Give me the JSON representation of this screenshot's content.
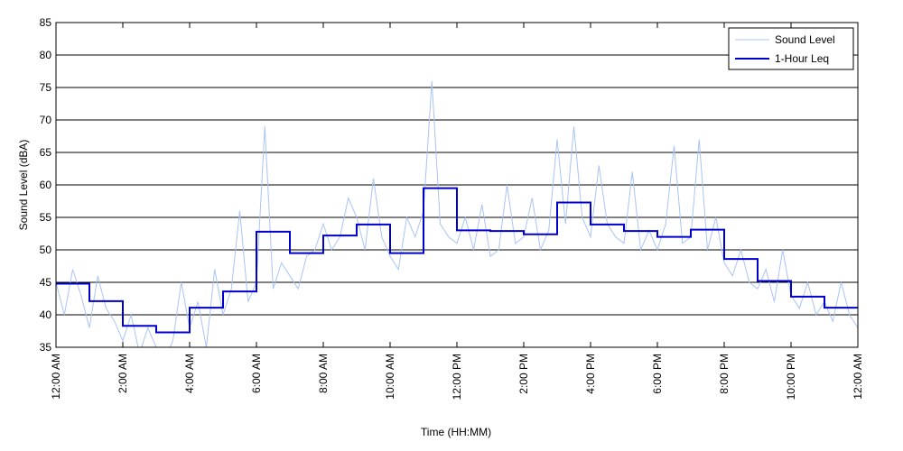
{
  "chart_data": {
    "type": "line",
    "xlabel": "Time (HH:MM)",
    "ylabel": "Sound Level (dBA)",
    "xlim": [
      0,
      24
    ],
    "ylim": [
      35,
      85
    ],
    "yticks": [
      35,
      40,
      45,
      50,
      55,
      60,
      65,
      70,
      75,
      80,
      85
    ],
    "xticks": [
      {
        "value": 0,
        "label": "12:00 AM"
      },
      {
        "value": 2,
        "label": "2:00 AM"
      },
      {
        "value": 4,
        "label": "4:00 AM"
      },
      {
        "value": 6,
        "label": "6:00 AM"
      },
      {
        "value": 8,
        "label": "8:00 AM"
      },
      {
        "value": 10,
        "label": "10:00 AM"
      },
      {
        "value": 12,
        "label": "12:00 PM"
      },
      {
        "value": 14,
        "label": "2:00 PM"
      },
      {
        "value": 16,
        "label": "4:00 PM"
      },
      {
        "value": 18,
        "label": "6:00 PM"
      },
      {
        "value": 20,
        "label": "8:00 PM"
      },
      {
        "value": 22,
        "label": "10:00 PM"
      },
      {
        "value": 24,
        "label": "12:00 AM"
      }
    ],
    "grid": "y",
    "legend": "upper right",
    "series": [
      {
        "name": "Sound Level",
        "color": "#a9c4f5",
        "x": [
          0,
          0.25,
          0.5,
          0.75,
          1,
          1.25,
          1.5,
          1.75,
          2,
          2.25,
          2.5,
          2.75,
          3,
          3.25,
          3.5,
          3.75,
          4,
          4.25,
          4.5,
          4.75,
          5,
          5.25,
          5.5,
          5.75,
          6,
          6.25,
          6.5,
          6.75,
          7,
          7.25,
          7.5,
          7.75,
          8,
          8.25,
          8.5,
          8.75,
          9,
          9.25,
          9.5,
          9.75,
          10,
          10.25,
          10.5,
          10.75,
          11,
          11.25,
          11.5,
          11.75,
          12,
          12.25,
          12.5,
          12.75,
          13,
          13.25,
          13.5,
          13.75,
          14,
          14.25,
          14.5,
          14.75,
          15,
          15.25,
          15.5,
          15.75,
          16,
          16.25,
          16.5,
          16.75,
          17,
          17.25,
          17.5,
          17.75,
          18,
          18.25,
          18.5,
          18.75,
          19,
          19.25,
          19.5,
          19.75,
          20,
          20.25,
          20.5,
          20.75,
          21,
          21.25,
          21.5,
          21.75,
          22,
          22.25,
          22.5,
          22.75,
          23,
          23.25,
          23.5,
          23.75,
          24
        ],
        "values": [
          45,
          40,
          47,
          43,
          38,
          46,
          41,
          39,
          36,
          40,
          34,
          38,
          35,
          33,
          36,
          45,
          38,
          42,
          35,
          47,
          40,
          44,
          56,
          42,
          45,
          69,
          44,
          48,
          46,
          44,
          49,
          50,
          54,
          50,
          52,
          58,
          55,
          50,
          61,
          52,
          49,
          47,
          55,
          52,
          56,
          76,
          54,
          52,
          51,
          55,
          50,
          57,
          49,
          50,
          60,
          51,
          52,
          58,
          50,
          53,
          67,
          54,
          69,
          55,
          52,
          63,
          54,
          52,
          51,
          62,
          50,
          53,
          50,
          54,
          66,
          51,
          52,
          67,
          50,
          55,
          48,
          46,
          50,
          45,
          44,
          47,
          42,
          50,
          43,
          41,
          45,
          40,
          42,
          39,
          45,
          40,
          38
        ]
      },
      {
        "name": "1-Hour Leq",
        "color": "#0000cc",
        "step": "post",
        "x": [
          0,
          1,
          2,
          3,
          4,
          5,
          6,
          7,
          8,
          9,
          10,
          11,
          12,
          13,
          14,
          15,
          16,
          17,
          18,
          19,
          20,
          21,
          22,
          23
        ],
        "values": [
          44.8,
          42.1,
          38.3,
          37.3,
          41.1,
          43.6,
          52.8,
          49.5,
          52.2,
          53.9,
          49.5,
          59.5,
          53.0,
          52.9,
          52.4,
          57.3,
          53.9,
          52.9,
          52.0,
          53.1,
          48.6,
          45.2,
          42.8,
          41.1
        ]
      }
    ]
  }
}
